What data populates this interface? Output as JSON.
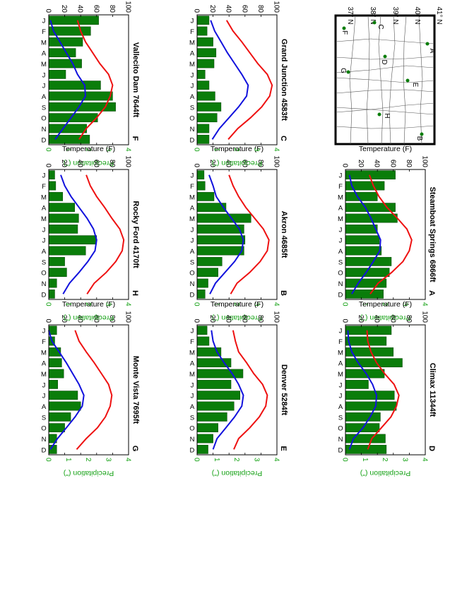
{
  "map": {
    "lat_labels": [
      "41° N",
      "40° N",
      "39° N",
      "38° N",
      "37° N"
    ],
    "stations": [
      "A",
      "B",
      "C",
      "D",
      "E",
      "F",
      "G",
      "H"
    ]
  },
  "colors": {
    "bar": "#0a7d0a",
    "bar_edge": "#064006",
    "temp_max": "#ee1111",
    "temp_min": "#1111dd",
    "precip_axis": "#12a012"
  },
  "chart_data": [
    {
      "type": "bar",
      "id": "A",
      "title": "Steamboat Springs 6866ft",
      "letter": "A",
      "categories": [
        "J",
        "F",
        "M",
        "A",
        "M",
        "J",
        "J",
        "A",
        "S",
        "O",
        "N",
        "D"
      ],
      "xlabel": "",
      "ylabel_left": "Temperature (F)",
      "ylabel_right": "Precipitation (\")",
      "ylim_left": [
        0,
        100
      ],
      "ylim_right": [
        0,
        4
      ],
      "left_ticks": [
        0,
        20,
        40,
        60,
        80,
        100
      ],
      "right_ticks": [
        0,
        1,
        2,
        3,
        4
      ],
      "precip": [
        2.5,
        1.95,
        1.6,
        2.5,
        2.6,
        1.6,
        1.7,
        1.8,
        2.3,
        2.2,
        2.05,
        1.9
      ],
      "temp_max": [
        30,
        35,
        42,
        52,
        65,
        77,
        83,
        80,
        72,
        58,
        41,
        31
      ],
      "temp_min": [
        5,
        8,
        15,
        25,
        32,
        38,
        44,
        43,
        35,
        26,
        16,
        8
      ]
    },
    {
      "type": "bar",
      "id": "B",
      "title": "Akron 4685ft",
      "letter": "B",
      "categories": [
        "J",
        "F",
        "M",
        "A",
        "M",
        "J",
        "J",
        "A",
        "S",
        "O",
        "N",
        "D"
      ],
      "xlabel": "",
      "ylabel_left": "Temperature (F)",
      "ylabel_right": "Precipitation (\")",
      "ylim_left": [
        0,
        100
      ],
      "ylim_right": [
        0,
        4
      ],
      "left_ticks": [
        0,
        20,
        40,
        60,
        80,
        100
      ],
      "right_ticks": [
        0,
        1,
        2,
        3,
        4
      ],
      "precip": [
        0.35,
        0.4,
        0.85,
        1.45,
        2.7,
        2.35,
        2.4,
        2.35,
        1.25,
        1.05,
        0.55,
        0.4
      ],
      "temp_max": [
        40,
        45,
        52,
        61,
        72,
        83,
        90,
        88,
        79,
        66,
        50,
        42
      ],
      "temp_min": [
        15,
        20,
        24,
        33,
        43,
        53,
        58,
        56,
        47,
        35,
        23,
        16
      ]
    },
    {
      "type": "bar",
      "id": "C",
      "title": "Grand Junction 4583ft",
      "letter": "C",
      "categories": [
        "J",
        "F",
        "M",
        "A",
        "M",
        "J",
        "J",
        "A",
        "S",
        "O",
        "N",
        "D"
      ],
      "xlabel": "",
      "ylabel_left": "Temperature (F)",
      "ylabel_right": "Precipitation (\")",
      "ylim_left": [
        0,
        100
      ],
      "ylim_right": [
        0,
        4
      ],
      "left_ticks": [
        0,
        20,
        40,
        60,
        80,
        100
      ],
      "right_ticks": [
        0,
        1,
        2,
        3,
        4
      ],
      "precip": [
        0.6,
        0.5,
        0.8,
        0.95,
        0.85,
        0.4,
        0.6,
        0.9,
        1.2,
        1.0,
        0.6,
        0.6
      ],
      "temp_max": [
        37,
        45,
        56,
        66,
        76,
        88,
        94,
        91,
        81,
        67,
        51,
        39
      ],
      "temp_min": [
        17,
        22,
        30,
        38,
        47,
        56,
        64,
        62,
        52,
        40,
        28,
        19
      ]
    },
    {
      "type": "bar",
      "id": "D",
      "title": "Climax 11344ft",
      "letter": "D",
      "categories": [
        "J",
        "F",
        "M",
        "A",
        "M",
        "J",
        "J",
        "A",
        "S",
        "O",
        "N",
        "D"
      ],
      "xlabel": "",
      "ylabel_left": "Temperature (F)",
      "ylabel_right": "Precipitation (\")",
      "ylim_left": [
        0,
        100
      ],
      "ylim_right": [
        0,
        4
      ],
      "left_ticks": [
        0,
        20,
        40,
        60,
        80,
        100
      ],
      "right_ticks": [
        0,
        1,
        2,
        3,
        4
      ],
      "precip": [
        2.3,
        2.05,
        2.4,
        2.85,
        1.95,
        1.15,
        2.45,
        2.55,
        1.75,
        1.7,
        2.0,
        2.05
      ],
      "temp_max": [
        27,
        28,
        32,
        39,
        49,
        61,
        67,
        64,
        57,
        45,
        33,
        28
      ],
      "temp_min": [
        3,
        4,
        8,
        16,
        26,
        34,
        39,
        38,
        31,
        22,
        10,
        5
      ]
    },
    {
      "type": "bar",
      "id": "E",
      "title": "Denver 5284ft",
      "letter": "E",
      "categories": [
        "J",
        "F",
        "M",
        "A",
        "M",
        "J",
        "J",
        "A",
        "S",
        "O",
        "N",
        "D"
      ],
      "xlabel": "",
      "ylabel_left": "Temperature (F)",
      "ylabel_right": "Precipitation (\")",
      "ylim_left": [
        0,
        100
      ],
      "ylim_right": [
        0,
        4
      ],
      "left_ticks": [
        0,
        20,
        40,
        60,
        80,
        100
      ],
      "right_ticks": [
        0,
        1,
        2,
        3,
        4
      ],
      "precip": [
        0.5,
        0.6,
        1.2,
        1.7,
        2.3,
        1.7,
        2.15,
        1.85,
        1.5,
        1.05,
        0.8,
        0.55
      ],
      "temp_max": [
        45,
        48,
        52,
        62,
        71,
        82,
        88,
        86,
        78,
        66,
        52,
        46
      ],
      "temp_min": [
        18,
        20,
        25,
        34,
        44,
        52,
        58,
        56,
        47,
        36,
        25,
        20
      ]
    },
    {
      "type": "bar",
      "id": "F",
      "title": "Vallecito Dam 7644ft",
      "letter": "F",
      "categories": [
        "J",
        "F",
        "M",
        "A",
        "M",
        "J",
        "J",
        "A",
        "S",
        "O",
        "N",
        "D"
      ],
      "xlabel": "",
      "ylabel_left": "Temperature (F)",
      "ylabel_right": "Precipitation (\")",
      "ylim_left": [
        0,
        100
      ],
      "ylim_right": [
        0,
        4
      ],
      "left_ticks": [
        0,
        20,
        40,
        60,
        80,
        100
      ],
      "right_ticks": [
        0,
        1,
        2,
        3,
        4
      ],
      "precip": [
        2.5,
        2.1,
        1.7,
        1.35,
        1.65,
        0.85,
        2.6,
        3.2,
        3.35,
        2.45,
        1.9,
        2.05
      ],
      "temp_max": [
        36,
        40,
        46,
        55,
        64,
        75,
        80,
        77,
        71,
        60,
        47,
        38
      ],
      "temp_min": [
        2,
        6,
        14,
        22,
        30,
        36,
        45,
        46,
        38,
        28,
        18,
        8
      ]
    },
    {
      "type": "bar",
      "id": "G",
      "title": "Monte Vista 7695ft",
      "letter": "G",
      "categories": [
        "J",
        "F",
        "M",
        "A",
        "M",
        "J",
        "J",
        "A",
        "S",
        "O",
        "N",
        "D"
      ],
      "xlabel": "",
      "ylabel_left": "Temperature (F)",
      "ylabel_right": "Precipitation (\")",
      "ylim_left": [
        0,
        100
      ],
      "ylim_right": [
        0,
        4
      ],
      "left_ticks": [
        0,
        20,
        40,
        60,
        80,
        100
      ],
      "right_ticks": [
        0,
        1,
        2,
        3,
        4
      ],
      "precip": [
        0.4,
        0.3,
        0.6,
        0.65,
        0.75,
        0.45,
        1.45,
        1.6,
        1.1,
        0.8,
        0.4,
        0.4
      ],
      "temp_max": [
        33,
        38,
        47,
        57,
        66,
        75,
        79,
        77,
        71,
        61,
        47,
        35
      ],
      "temp_min": [
        0,
        4,
        13,
        22,
        30,
        38,
        44,
        42,
        33,
        22,
        11,
        2
      ]
    },
    {
      "type": "bar",
      "id": "H",
      "title": "Rocky Ford 4170ft",
      "letter": "H",
      "categories": [
        "J",
        "F",
        "M",
        "A",
        "M",
        "J",
        "J",
        "A",
        "S",
        "O",
        "N",
        "D"
      ],
      "xlabel": "",
      "ylabel_left": "Temperature (F)",
      "ylabel_right": "Precipitation (\")",
      "ylim_left": [
        0,
        100
      ],
      "ylim_right": [
        0,
        4
      ],
      "left_ticks": [
        0,
        20,
        40,
        60,
        80,
        100
      ],
      "right_ticks": [
        0,
        1,
        2,
        3,
        4
      ],
      "precip": [
        0.3,
        0.35,
        0.7,
        1.3,
        1.5,
        1.45,
        2.4,
        1.85,
        0.8,
        0.9,
        0.4,
        0.3
      ],
      "temp_max": [
        47,
        52,
        60,
        70,
        79,
        89,
        94,
        92,
        84,
        72,
        57,
        48
      ],
      "temp_min": [
        15,
        20,
        28,
        38,
        48,
        56,
        60,
        58,
        49,
        38,
        26,
        18
      ]
    }
  ]
}
